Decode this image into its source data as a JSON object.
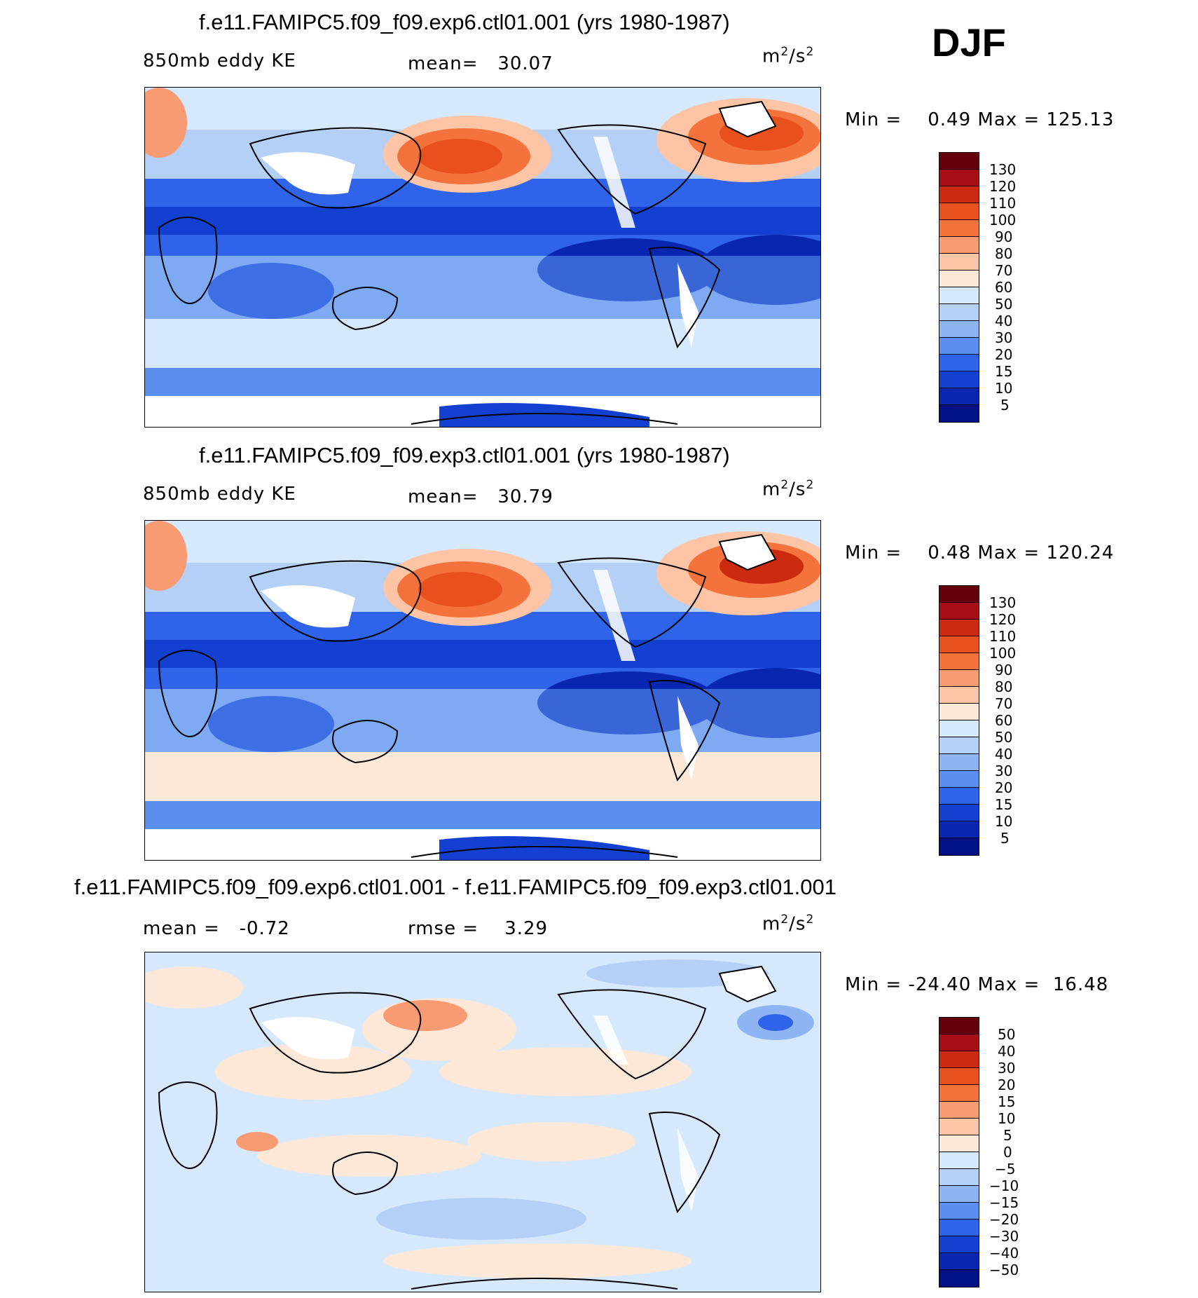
{
  "season": "DJF",
  "panels": [
    {
      "title": "f.e11.FAMIPC5.f09_f09.exp6.ctl01.001 (yrs 1980-1987)",
      "left_label": "850mb eddy KE",
      "mid_label": "mean=   30.07",
      "units_base": "m",
      "units_exp": "2",
      "units_tail": "/s",
      "units_exp2": "2",
      "minmax": "Min =    0.49 Max = 125.13",
      "colorbar": {
        "labels": [
          "130",
          "120",
          "110",
          "100",
          "90",
          "80",
          "70",
          "60",
          "50",
          "40",
          "30",
          "20",
          "15",
          "10",
          "5"
        ],
        "colors": [
          "#67000d",
          "#a50f15",
          "#cb2a0f",
          "#e8501e",
          "#f4733c",
          "#f99b72",
          "#fdc5a5",
          "#fde8d8",
          "#d6e8fb",
          "#b4d0f7",
          "#8fb4f4",
          "#5a8ff0",
          "#2e63ea",
          "#1440d2",
          "#0826b0",
          "#001085"
        ]
      }
    },
    {
      "title": "f.e11.FAMIPC5.f09_f09.exp3.ctl01.001 (yrs 1980-1987)",
      "left_label": "850mb eddy KE",
      "mid_label": "mean=   30.79",
      "units_base": "m",
      "units_exp": "2",
      "units_tail": "/s",
      "units_exp2": "2",
      "minmax": "Min =    0.48 Max = 120.24",
      "colorbar": {
        "labels": [
          "130",
          "120",
          "110",
          "100",
          "90",
          "80",
          "70",
          "60",
          "50",
          "40",
          "30",
          "20",
          "15",
          "10",
          "5"
        ],
        "colors": [
          "#67000d",
          "#a50f15",
          "#cb2a0f",
          "#e8501e",
          "#f4733c",
          "#f99b72",
          "#fdc5a5",
          "#fde8d8",
          "#d6e8fb",
          "#b4d0f7",
          "#8fb4f4",
          "#5a8ff0",
          "#2e63ea",
          "#1440d2",
          "#0826b0",
          "#001085"
        ]
      }
    },
    {
      "title": "f.e11.FAMIPC5.f09_f09.exp6.ctl01.001 - f.e11.FAMIPC5.f09_f09.exp3.ctl01.001",
      "left_label": "mean =   -0.72",
      "mid_label": "rmse =    3.29",
      "units_base": "m",
      "units_exp": "2",
      "units_tail": "/s",
      "units_exp2": "2",
      "minmax": "Min = -24.40 Max =  16.48",
      "colorbar": {
        "labels": [
          "50",
          "40",
          "30",
          "20",
          "15",
          "10",
          "5",
          "0",
          "-5",
          "-10",
          "-15",
          "-20",
          "-30",
          "-40",
          "-50"
        ],
        "colors": [
          "#67000d",
          "#a50f15",
          "#cb2a0f",
          "#e8501e",
          "#f4733c",
          "#f99b72",
          "#fdc5a5",
          "#fde8d8",
          "#d6e8fb",
          "#b4d0f7",
          "#8fb4f4",
          "#5a8ff0",
          "#2e63ea",
          "#1440d2",
          "#0826b0",
          "#001085"
        ]
      }
    }
  ]
}
